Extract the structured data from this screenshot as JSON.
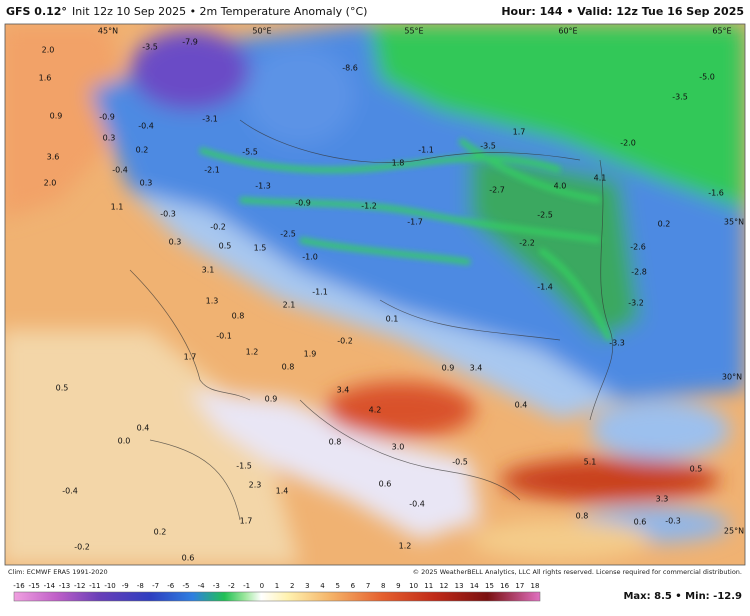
{
  "header": {
    "model": "GFS 0.12°",
    "init": "Init 12z 10 Sep 2025 • 2m Temperature Anomaly (°C)",
    "valid": "Hour: 144 • Valid: 12z Tue 16 Sep 2025"
  },
  "map": {
    "geo_labels": [
      "45°N",
      "50°E",
      "55°E",
      "60°E",
      "65°E",
      "35°N",
      "30°N",
      "25°N"
    ],
    "values": [
      "2.0",
      "1.6",
      "0.9",
      "-0.9",
      "-0.4",
      "0.3",
      "0.2",
      "3.6",
      "2.0",
      "1.1",
      "0.3",
      "-0.3",
      "-0.2",
      "0.5",
      "0.3",
      "1.5",
      "-2.5",
      "-1.0",
      "3.1",
      "1.3",
      "2.1",
      "-1.1",
      "0.8",
      "-0.1",
      "1.2",
      "1.7",
      "1.9",
      "-0.2",
      "0.8",
      "0.5",
      "0.9",
      "3.4",
      "4.2",
      "0.9",
      "3.4",
      "0.4",
      "0.4",
      "0.0",
      "3.0",
      "0.8",
      "-1.5",
      "2.3",
      "1.4",
      "-0.4",
      "1.7",
      "0.2",
      "-0.2",
      "0.6",
      "0.6",
      "-0.4",
      "1.2",
      "5.1",
      "0.5",
      "3.3",
      "0.8",
      "0.6",
      "-0.3",
      "-0.5",
      "1.8",
      "-1.1",
      "1.7",
      "-2.0",
      "4.0",
      "-2.7",
      "4.1",
      "-2.5",
      "-2.2",
      "-1.4",
      "-3.2",
      "-2.8",
      "-2.6",
      "-3.3",
      "0.2",
      "-1.6",
      "-5.0",
      "-3.5",
      "-8.6",
      "-3.5",
      "-7.9",
      "-3.1",
      "-5.5",
      "-2.1",
      "-1.3",
      "-0.9",
      "-1.2",
      "-1.7",
      "-3.5",
      "-0.4",
      "0.1"
    ]
  },
  "footer": {
    "climatology": "Clim: ECMWF ERA5 1991-2020",
    "copyright": "© 2025 WeatherBELL Analytics, LLC All rights reserved. License required for commercial distribution.",
    "stats": "Max: 8.5 • Min: -12.9"
  },
  "colorbar": {
    "ticks": [
      -16,
      -15,
      -14,
      -13,
      -12,
      -11,
      -10,
      -9,
      -8,
      -7,
      -6,
      -5,
      -4,
      -3,
      -2,
      -1,
      0,
      1,
      2,
      3,
      4,
      5,
      6,
      7,
      8,
      9,
      10,
      11,
      12,
      13,
      14,
      15,
      16,
      17,
      18
    ]
  }
}
